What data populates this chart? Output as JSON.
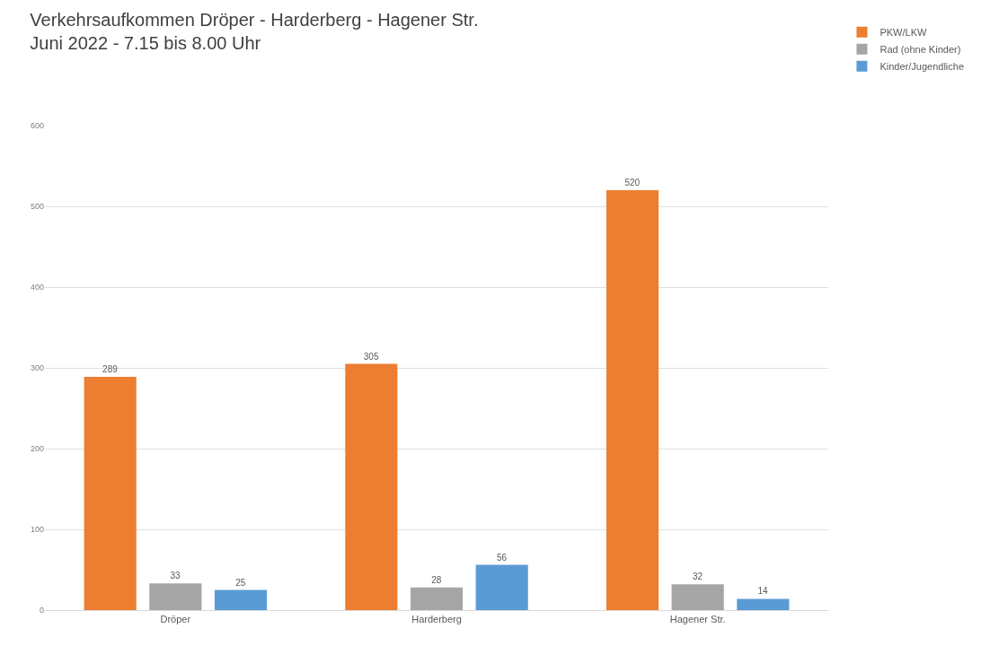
{
  "chart_data": {
    "type": "bar",
    "title": "Verkehrsaufkommen Dröper - Harderberg - Hagener Str.",
    "subtitle": "Juni 2022 - 7.15 bis 8.00 Uhr",
    "categories": [
      "Dröper",
      "Harderberg",
      "Hagener Str."
    ],
    "series": [
      {
        "name": "PKW/LKW",
        "color": "#ed7d31",
        "values": [
          289,
          305,
          520
        ]
      },
      {
        "name": "Rad (ohne Kinder)",
        "color": "#a5a5a5",
        "values": [
          33,
          28,
          32
        ]
      },
      {
        "name": "Kinder/Jugendliche",
        "color": "#5b9bd5",
        "values": [
          25,
          56,
          14
        ]
      }
    ],
    "ylim": [
      0,
      600
    ],
    "yticks": [
      0,
      100,
      200,
      300,
      400,
      500,
      600
    ],
    "grid": "y",
    "legend": "top right",
    "data_labels": true
  }
}
